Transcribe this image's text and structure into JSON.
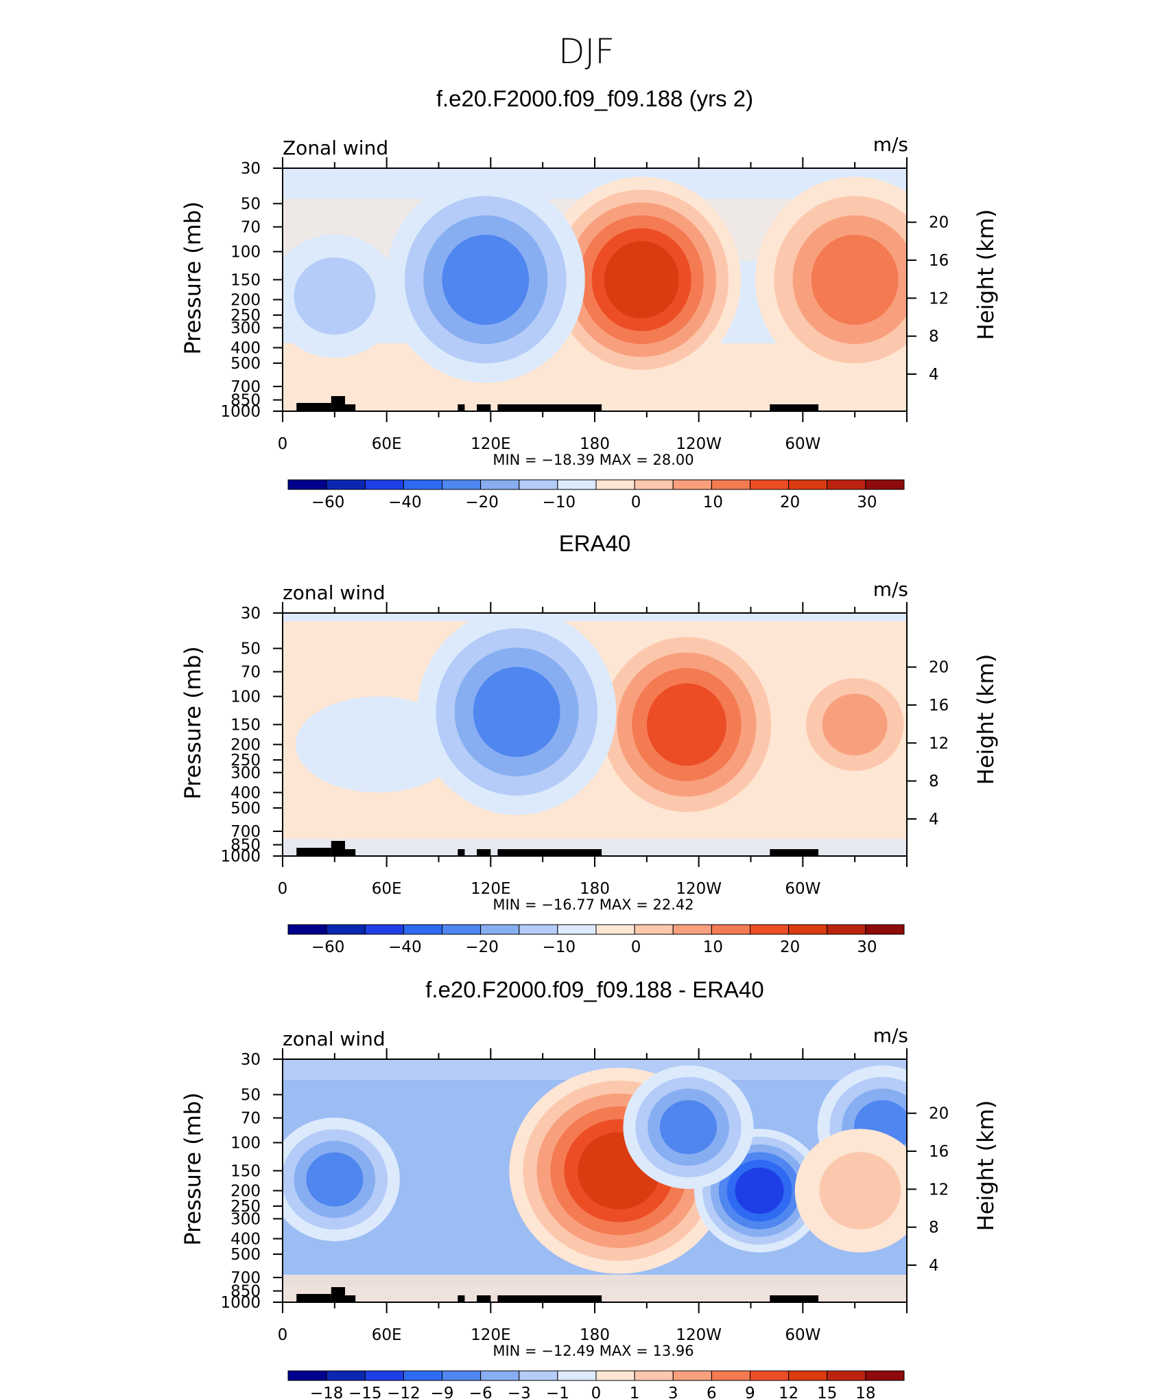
{
  "figure": {
    "main_title": "DJF",
    "accent_colors": {
      "frame": "#000000",
      "terrain": "#000000"
    }
  },
  "chart_data": [
    {
      "type": "heatmap",
      "title": "f.e20.F2000.f09_f09.188 (yrs 2)",
      "left_string": "Zonal wind",
      "right_string": "m/s",
      "ylabel": "Pressure (mb)",
      "ylabel_right": "Height (km)",
      "x_ticks": [
        "0",
        "60E",
        "120E",
        "180",
        "120W",
        "60W"
      ],
      "x_range_deg": [
        0,
        360
      ],
      "y_ticks": [
        "30",
        "50",
        "70",
        "100",
        "150",
        "200",
        "250",
        "300",
        "400",
        "500",
        "700",
        "850",
        "1000"
      ],
      "y_range_mb": [
        1000,
        30
      ],
      "y_scale": "log",
      "height_ticks": [
        "20",
        "16",
        "12",
        "8",
        "4"
      ],
      "min_max": "MIN = −18.39   MAX =   28.00",
      "colorbar": {
        "labels": [
          "−60",
          "−40",
          "−20",
          "−10",
          "0",
          "10",
          "20",
          "30"
        ],
        "colors": [
          "#00008c",
          "#0a27b0",
          "#1e3fe6",
          "#2e6bf2",
          "#4f86f0",
          "#88aef2",
          "#b4ccf7",
          "#dceafc",
          "#fee6d4",
          "#fcc8ad",
          "#f8a07e",
          "#f47a52",
          "#ec4d24",
          "#db3b10",
          "#bc2410",
          "#8f0a0a"
        ]
      },
      "features": [
        {
          "kind": "jet_max",
          "lon": 207,
          "p": 150,
          "value": 28.0
        },
        {
          "kind": "jet_max",
          "lon": 330,
          "p": 150,
          "value": 16
        },
        {
          "kind": "easterly_min",
          "lon": 117,
          "p": 150,
          "value": -18.39
        },
        {
          "kind": "easterly_min",
          "lon": 30,
          "p": 190,
          "value": -8
        }
      ]
    },
    {
      "type": "heatmap",
      "title": "ERA40",
      "left_string": "zonal wind",
      "right_string": "m/s",
      "ylabel": "Pressure (mb)",
      "ylabel_right": "Height (km)",
      "x_ticks": [
        "0",
        "60E",
        "120E",
        "180",
        "120W",
        "60W"
      ],
      "x_range_deg": [
        0,
        360
      ],
      "y_ticks": [
        "30",
        "50",
        "70",
        "100",
        "150",
        "200",
        "250",
        "300",
        "400",
        "500",
        "700",
        "850",
        "1000"
      ],
      "y_range_mb": [
        1000,
        30
      ],
      "y_scale": "log",
      "height_ticks": [
        "20",
        "16",
        "12",
        "8",
        "4"
      ],
      "min_max": "MIN = −16.77   MAX =   22.42",
      "colorbar": {
        "labels": [
          "−60",
          "−40",
          "−20",
          "−10",
          "0",
          "10",
          "20",
          "30"
        ],
        "colors": [
          "#00008c",
          "#0a27b0",
          "#1e3fe6",
          "#2e6bf2",
          "#4f86f0",
          "#88aef2",
          "#b4ccf7",
          "#dceafc",
          "#fee6d4",
          "#fcc8ad",
          "#f8a07e",
          "#f47a52",
          "#ec4d24",
          "#db3b10",
          "#bc2410",
          "#8f0a0a"
        ]
      },
      "features": [
        {
          "kind": "jet_max",
          "lon": 233,
          "p": 150,
          "value": 22.42
        },
        {
          "kind": "jet_max",
          "lon": 330,
          "p": 150,
          "value": 14
        },
        {
          "kind": "easterly_min",
          "lon": 135,
          "p": 125,
          "value": -16.77
        }
      ]
    },
    {
      "type": "heatmap",
      "title": "f.e20.F2000.f09_f09.188 - ERA40",
      "left_string": "zonal wind",
      "right_string": "m/s",
      "ylabel": "Pressure (mb)",
      "ylabel_right": "Height (km)",
      "x_ticks": [
        "0",
        "60E",
        "120E",
        "180",
        "120W",
        "60W"
      ],
      "x_range_deg": [
        0,
        360
      ],
      "y_ticks": [
        "30",
        "50",
        "70",
        "100",
        "150",
        "200",
        "250",
        "300",
        "400",
        "500",
        "700",
        "850",
        "1000"
      ],
      "y_range_mb": [
        1000,
        30
      ],
      "y_scale": "log",
      "height_ticks": [
        "20",
        "16",
        "12",
        "8",
        "4"
      ],
      "min_max": "MIN = −12.49   MAX =   13.96",
      "colorbar": {
        "labels": [
          "−18",
          "−15",
          "−12",
          "−9",
          "−6",
          "−3",
          "−1",
          "0",
          "1",
          "3",
          "6",
          "9",
          "12",
          "15",
          "18"
        ],
        "colors": [
          "#00008c",
          "#0a27b0",
          "#1e3fe6",
          "#2e6bf2",
          "#4f86f0",
          "#88aef2",
          "#b4ccf7",
          "#dceafc",
          "#fee6d4",
          "#fcc8ad",
          "#f8a07e",
          "#f47a52",
          "#ec4d24",
          "#db3b10",
          "#bc2410",
          "#8f0a0a"
        ]
      },
      "features": [
        {
          "kind": "diff_max",
          "lon": 194,
          "p": 150,
          "value": 13.96
        },
        {
          "kind": "diff_min",
          "lon": 275,
          "p": 200,
          "value": -12.49
        },
        {
          "kind": "diff_min",
          "lon": 30,
          "p": 170,
          "value": -9
        },
        {
          "kind": "diff_min",
          "lon": 234,
          "p": 80,
          "value": -8
        },
        {
          "kind": "diff_min",
          "lon": 346,
          "p": 80,
          "value": -8
        },
        {
          "kind": "diff_max",
          "lon": 333,
          "p": 200,
          "value": 3
        }
      ]
    }
  ]
}
